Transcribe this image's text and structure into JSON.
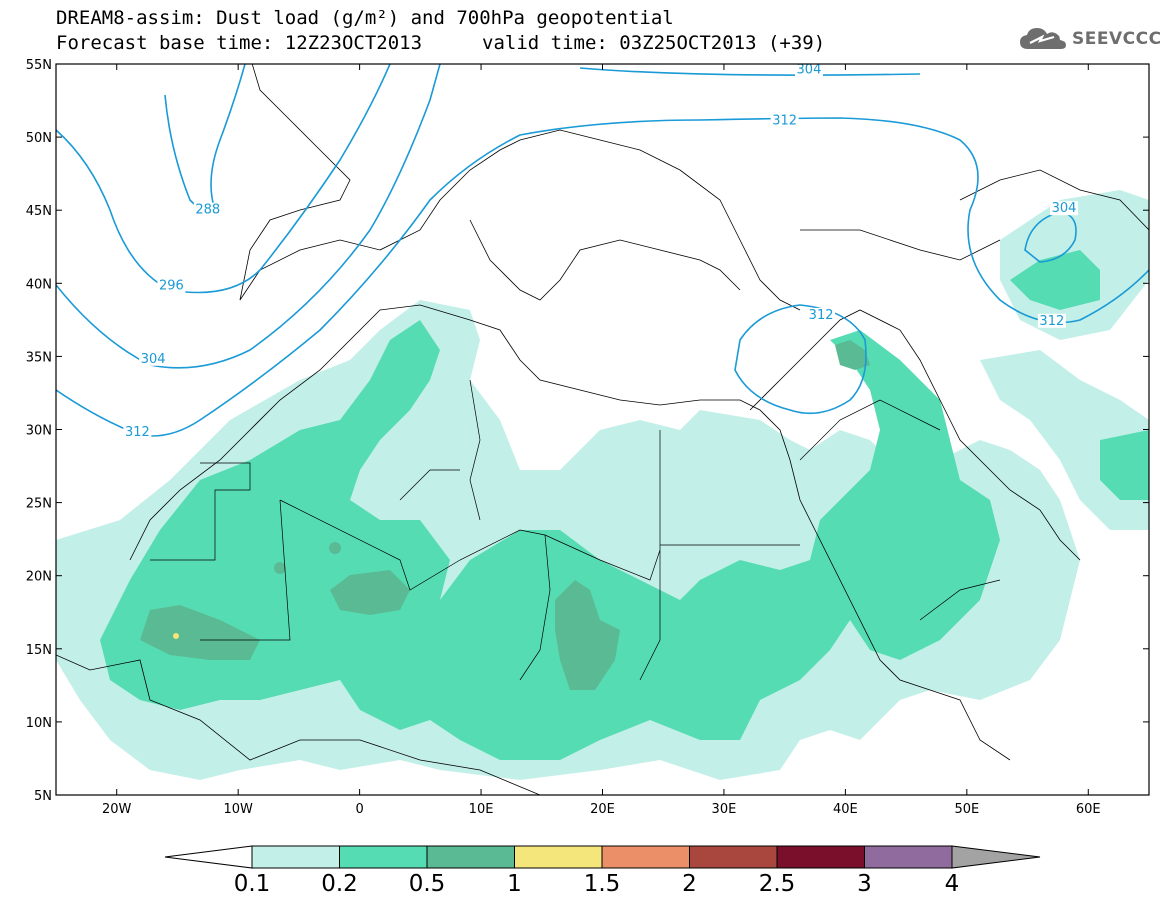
{
  "header": {
    "line1": "DREAM8-assim: Dust load (g/m²) and 700hPa geopotential",
    "line2_base": "Forecast base time: 12Z23OCT2013",
    "line2_valid": "valid time: 03Z25OCT2013 (+39)"
  },
  "logo": {
    "text": "SEEVCCC",
    "icon": "cloud-icon"
  },
  "axes": {
    "lat_labels": [
      "55N",
      "50N",
      "45N",
      "40N",
      "35N",
      "30N",
      "25N",
      "20N",
      "15N",
      "10N",
      "5N"
    ],
    "lon_labels": [
      "20W",
      "10W",
      "0",
      "10E",
      "20E",
      "30E",
      "40E",
      "50E",
      "60E"
    ],
    "lat_range": [
      5,
      55
    ],
    "lon_range": [
      -25,
      65
    ]
  },
  "contours": {
    "color": "#1a9ad6",
    "labels": [
      {
        "text": "288",
        "lon": -12.5,
        "lat": 44.9
      },
      {
        "text": "296",
        "lon": -15.5,
        "lat": 39.7
      },
      {
        "text": "304",
        "lon": -17.0,
        "lat": 34.7
      },
      {
        "text": "312",
        "lon": -18.3,
        "lat": 29.7
      },
      {
        "text": "304",
        "lon": 37.0,
        "lat": 54.5
      },
      {
        "text": "312",
        "lon": 35.0,
        "lat": 51.0
      },
      {
        "text": "312",
        "lon": 38.0,
        "lat": 37.7
      },
      {
        "text": "304",
        "lon": 58.0,
        "lat": 45.0
      },
      {
        "text": "312",
        "lon": 57.0,
        "lat": 37.3
      }
    ]
  },
  "colorbar": {
    "labels": [
      "0.1",
      "0.2",
      "0.5",
      "1",
      "1.5",
      "2",
      "2.5",
      "3",
      "4"
    ],
    "colors": [
      "#c2efe8",
      "#56dcb3",
      "#5aba94",
      "#f5e67c",
      "#ea8f68",
      "#a9473e",
      "#7a0f2c",
      "#8f6b9e"
    ],
    "under_color": "#ffffff",
    "over_color": "#a3a3a3"
  }
}
